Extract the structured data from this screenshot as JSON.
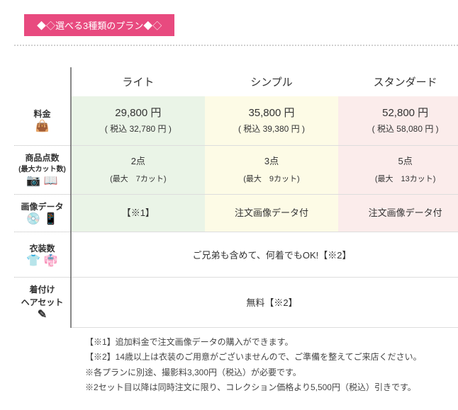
{
  "banner": {
    "text": "◆◇選べる3種類のプラン◆◇"
  },
  "table": {
    "headers": {
      "light": "ライト",
      "simple": "シンプル",
      "standard": "スタンダード"
    },
    "rows": {
      "price": {
        "label": "料金",
        "light": {
          "main": "29,800 円",
          "tax": "( 税込 32,780 円 )"
        },
        "simple": {
          "main": "35,800 円",
          "tax": "( 税込 39,380 円 )"
        },
        "std": {
          "main": "52,800 円",
          "tax": "( 税込 58,080 円 )"
        }
      },
      "items": {
        "label": "商品点数",
        "sublabel": "(最大カット数)",
        "light": {
          "main": "2点",
          "cuts": "(最大　7カット)"
        },
        "simple": {
          "main": "3点",
          "cuts": "(最大　9カット)"
        },
        "std": {
          "main": "5点",
          "cuts": "(最大　13カット)"
        }
      },
      "data": {
        "label": "画像データ",
        "light": "【※1】",
        "simple": "注文画像データ付",
        "std": "注文画像データ付"
      },
      "costume": {
        "label": "衣装数",
        "merged": "ご兄弟も含めて、何着でもOK!【※2】"
      },
      "dressing": {
        "label1": "着付け",
        "label2": "ヘアセット",
        "merged": "無料【※2】"
      }
    }
  },
  "notes": {
    "n1": "【※1】追加料金で注文画像データの購入ができます。",
    "n2": "【※2】14歳以上は衣装のご用意がございませんので、ご準備を整えてご来店ください。",
    "n3": "※各プランに別途、撮影料3,300円（税込）が必要です。",
    "n4": "※2セット目以降は同時注文に限り、コレクション価格より5,500円（税込）引きです。"
  },
  "colors": {
    "banner_bg": "#e84a7f",
    "col_light": "#eaf4e7",
    "col_simple": "#fdfbe6",
    "col_std": "#fbeceb"
  }
}
